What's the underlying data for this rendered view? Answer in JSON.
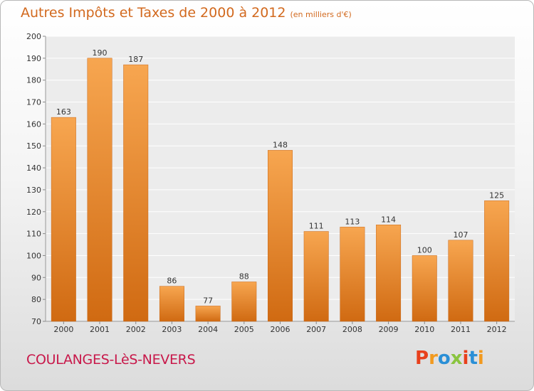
{
  "chart_data": {
    "type": "bar",
    "title": "Autres Impôts et Taxes de 2000 à 2012",
    "subtitle": "(en milliers d'€)",
    "categories": [
      "2000",
      "2001",
      "2002",
      "2003",
      "2004",
      "2005",
      "2006",
      "2007",
      "2008",
      "2009",
      "2010",
      "2011",
      "2012"
    ],
    "values": [
      163,
      190,
      187,
      86,
      77,
      88,
      148,
      111,
      113,
      114,
      100,
      107,
      125
    ],
    "ylim": [
      70,
      200
    ],
    "yticks": [
      70,
      80,
      90,
      100,
      110,
      120,
      130,
      140,
      150,
      160,
      170,
      180,
      190,
      200
    ],
    "grid": true,
    "bar_color": "#f0902f"
  },
  "footer": {
    "location": "COULANGES-LèS-NEVERS",
    "logo_text": "Proxiti"
  },
  "colors": {
    "title": "#d2691e",
    "location": "#c8184a",
    "logo": [
      "#e8401c",
      "#f29a1f",
      "#2a8fd6",
      "#8ac43f",
      "#e8401c",
      "#2a8fd6",
      "#f29a1f"
    ]
  }
}
